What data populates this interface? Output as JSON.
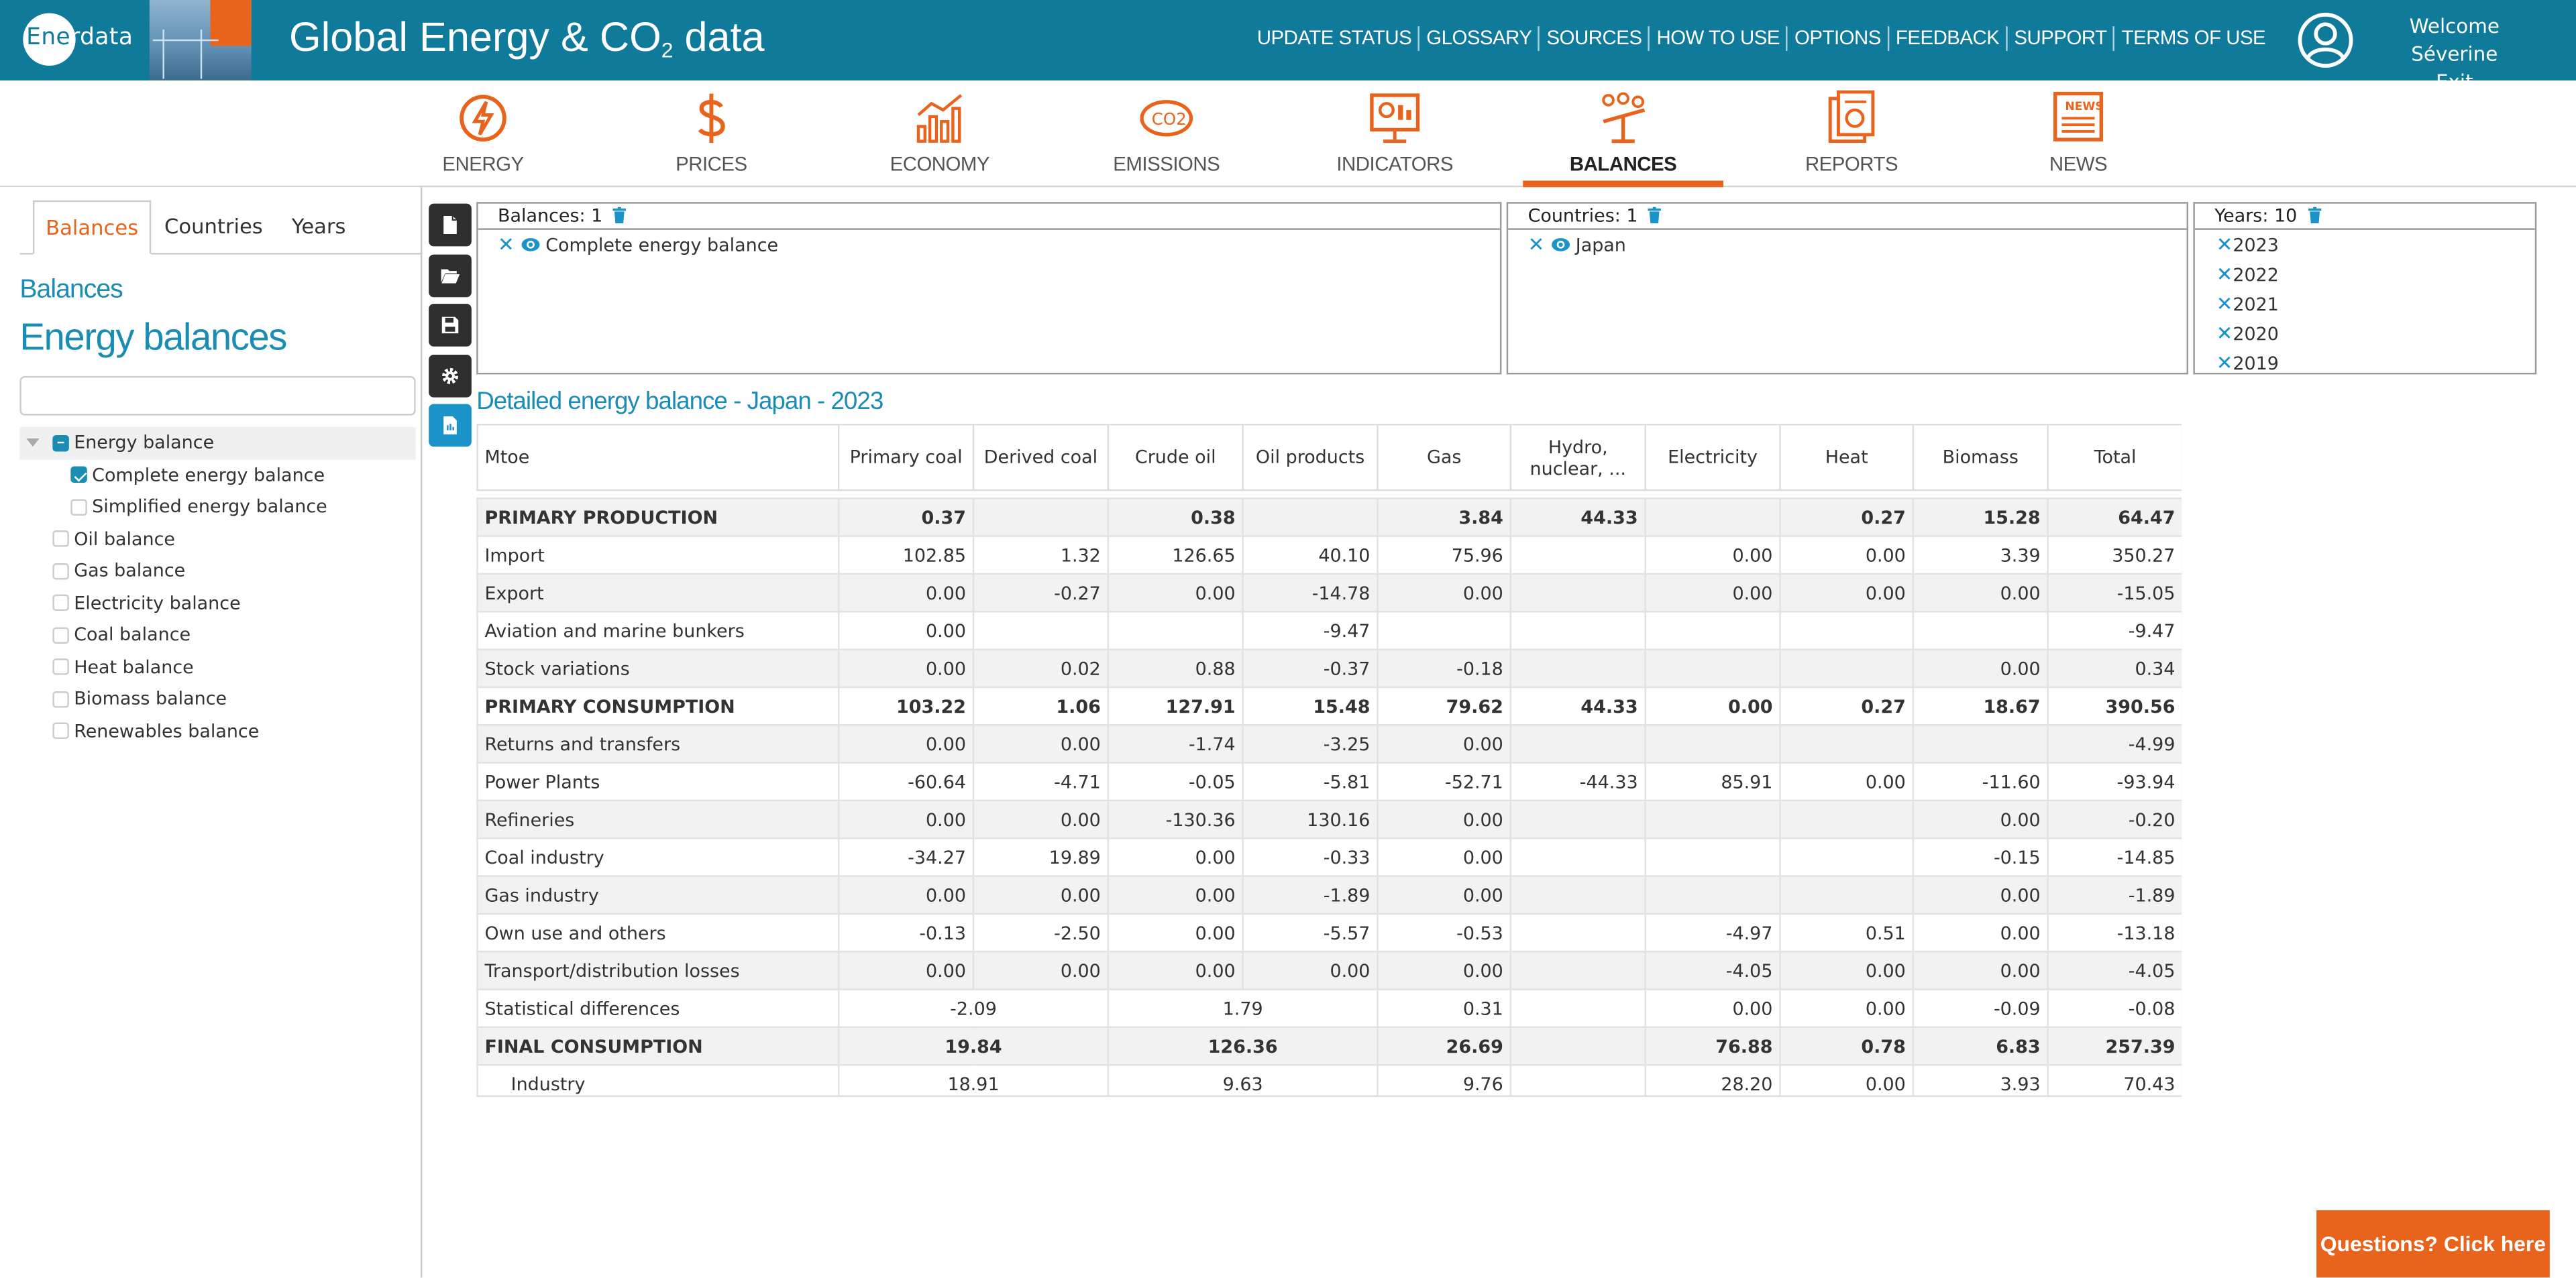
{
  "header": {
    "logo_prefix": "Ene",
    "logo_suffix": "rdata",
    "title_main": "Global Energy & CO",
    "title_sub": "2",
    "title_tail": " data",
    "nav": [
      "UPDATE STATUS",
      "GLOSSARY",
      "SOURCES",
      "HOW TO USE",
      "OPTIONS",
      "FEEDBACK",
      "SUPPORT",
      "TERMS OF USE"
    ],
    "welcome": "Welcome Séverine",
    "exit": "Exit"
  },
  "modules": [
    {
      "label": "ENERGY",
      "icon": "energy-icon"
    },
    {
      "label": "PRICES",
      "icon": "dollar-icon"
    },
    {
      "label": "ECONOMY",
      "icon": "chart-icon"
    },
    {
      "label": "EMISSIONS",
      "icon": "co2-icon"
    },
    {
      "label": "INDICATORS",
      "icon": "monitor-icon"
    },
    {
      "label": "BALANCES",
      "icon": "balance-icon"
    },
    {
      "label": "REPORTS",
      "icon": "reports-icon"
    },
    {
      "label": "NEWS",
      "icon": "news-icon"
    }
  ],
  "active_module": "BALANCES",
  "colors": {
    "primary": "#0f7a99",
    "accent": "#e8641d",
    "link": "#1b8db3"
  },
  "left": {
    "tabs": [
      "Balances",
      "Countries",
      "Years"
    ],
    "active_tab": "Balances",
    "breadcrumb": "Balances",
    "heading": "Energy balances",
    "search_value": "",
    "tree": [
      {
        "label": "Energy balance",
        "state": "partial",
        "level": 0
      },
      {
        "label": "Complete energy balance",
        "state": "checked",
        "level": 1
      },
      {
        "label": "Simplified energy balance",
        "state": "unchecked",
        "level": 1
      },
      {
        "label": "Oil balance",
        "state": "unchecked",
        "level": 0
      },
      {
        "label": "Gas balance",
        "state": "unchecked",
        "level": 0
      },
      {
        "label": "Electricity balance",
        "state": "unchecked",
        "level": 0
      },
      {
        "label": "Coal balance",
        "state": "unchecked",
        "level": 0
      },
      {
        "label": "Heat balance",
        "state": "unchecked",
        "level": 0
      },
      {
        "label": "Biomass balance",
        "state": "unchecked",
        "level": 0
      },
      {
        "label": "Renewables balance",
        "state": "unchecked",
        "level": 0
      }
    ]
  },
  "selections": {
    "balances": {
      "header": "Balances: 1",
      "items": [
        "Complete energy balance"
      ]
    },
    "countries": {
      "header": "Countries: 1",
      "items": [
        "Japan"
      ]
    },
    "years": {
      "header": "Years: 10",
      "items": [
        "2023",
        "2022",
        "2021",
        "2020",
        "2019"
      ]
    }
  },
  "table": {
    "title": "Detailed energy balance - Japan - 2023",
    "unit": "Mtoe",
    "columns": [
      "Primary coal",
      "Derived coal",
      "Crude oil",
      "Oil products",
      "Gas",
      "Hydro, nuclear, ...",
      "Electricity",
      "Heat",
      "Biomass",
      "Total"
    ],
    "rows": [
      {
        "label": "PRIMARY PRODUCTION",
        "bold": true,
        "cells": [
          "0.37",
          "",
          "0.38",
          "",
          "3.84",
          "44.33",
          "",
          "0.27",
          "15.28",
          "64.47"
        ]
      },
      {
        "label": "Import",
        "cells": [
          "102.85",
          "1.32",
          "126.65",
          "40.10",
          "75.96",
          "",
          "0.00",
          "0.00",
          "3.39",
          "350.27"
        ]
      },
      {
        "label": "Export",
        "cells": [
          "0.00",
          "-0.27",
          "0.00",
          "-14.78",
          "0.00",
          "",
          "0.00",
          "0.00",
          "0.00",
          "-15.05"
        ]
      },
      {
        "label": "Aviation and marine bunkers",
        "cells": [
          "0.00",
          "",
          "",
          "-9.47",
          "",
          "",
          "",
          "",
          "",
          "-9.47"
        ]
      },
      {
        "label": "Stock variations",
        "cells": [
          "0.00",
          "0.02",
          "0.88",
          "-0.37",
          "-0.18",
          "",
          "",
          "",
          "0.00",
          "0.34"
        ]
      },
      {
        "label": "PRIMARY CONSUMPTION",
        "bold": true,
        "cells": [
          "103.22",
          "1.06",
          "127.91",
          "15.48",
          "79.62",
          "44.33",
          "0.00",
          "0.27",
          "18.67",
          "390.56"
        ]
      },
      {
        "label": "Returns and transfers",
        "cells": [
          "0.00",
          "0.00",
          "-1.74",
          "-3.25",
          "0.00",
          "",
          "",
          "",
          "",
          "-4.99"
        ]
      },
      {
        "label": "Power Plants",
        "cells": [
          "-60.64",
          "-4.71",
          "-0.05",
          "-5.81",
          "-52.71",
          "-44.33",
          "85.91",
          "0.00",
          "-11.60",
          "-93.94"
        ]
      },
      {
        "label": "Refineries",
        "cells": [
          "0.00",
          "0.00",
          "-130.36",
          "130.16",
          "0.00",
          "",
          "",
          "",
          "0.00",
          "-0.20"
        ]
      },
      {
        "label": "Coal industry",
        "cells": [
          "-34.27",
          "19.89",
          "0.00",
          "-0.33",
          "0.00",
          "",
          "",
          "",
          "-0.15",
          "-14.85"
        ]
      },
      {
        "label": "Gas industry",
        "cells": [
          "0.00",
          "0.00",
          "0.00",
          "-1.89",
          "0.00",
          "",
          "",
          "",
          "0.00",
          "-1.89"
        ]
      },
      {
        "label": "Own use and others",
        "cells": [
          "-0.13",
          "-2.50",
          "0.00",
          "-5.57",
          "-0.53",
          "",
          "-4.97",
          "0.51",
          "0.00",
          "-13.18"
        ]
      },
      {
        "label": "Transport/distribution losses",
        "cells": [
          "0.00",
          "0.00",
          "0.00",
          "0.00",
          "0.00",
          "",
          "-4.05",
          "0.00",
          "0.00",
          "-4.05"
        ]
      }
    ],
    "merged_rows": [
      {
        "label": "Statistical differences",
        "coal": "-2.09",
        "oil": "1.79",
        "cells": [
          "0.31",
          "",
          "0.00",
          "0.00",
          "-0.09",
          "-0.08"
        ]
      },
      {
        "label": "FINAL CONSUMPTION",
        "bold": true,
        "coal": "19.84",
        "oil": "126.36",
        "cells": [
          "26.69",
          "",
          "76.88",
          "0.78",
          "6.83",
          "257.39"
        ]
      },
      {
        "label": "Industry",
        "indent": true,
        "coal": "18.91",
        "oil": "9.63",
        "cells": [
          "9.76",
          "",
          "28.20",
          "0.00",
          "3.93",
          "70.43"
        ]
      }
    ]
  },
  "help_button": "Questions? Click here"
}
